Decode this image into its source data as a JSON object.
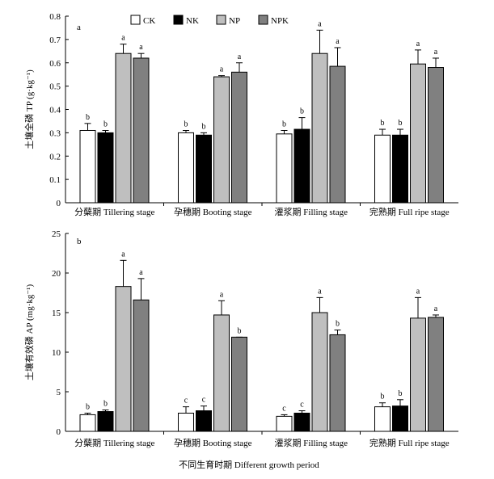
{
  "chart_data": [
    {
      "type": "bar",
      "panel_label": "a",
      "ylabel": "土壤全磷 TP (g·kg⁻¹)",
      "ylim": [
        0,
        0.8
      ],
      "yticks": [
        "0",
        "0.1",
        "0.2",
        "0.3",
        "0.4",
        "0.5",
        "0.6",
        "0.7",
        "0.8"
      ],
      "categories": [
        "分蘖期 Tillering stage",
        "孕穗期 Booting stage",
        "灌浆期 Filling stage",
        "完熟期 Full ripe stage"
      ],
      "legend_placement": "top-center",
      "series": [
        {
          "name": "CK",
          "values": [
            0.31,
            0.3,
            0.295,
            0.29
          ],
          "errors": [
            0.03,
            0.01,
            0.015,
            0.025
          ],
          "letters": [
            "b",
            "b",
            "b",
            "b"
          ]
        },
        {
          "name": "NK",
          "values": [
            0.3,
            0.29,
            0.315,
            0.29
          ],
          "errors": [
            0.01,
            0.01,
            0.05,
            0.025
          ],
          "letters": [
            "b",
            "b",
            "b",
            "b"
          ]
        },
        {
          "name": "NP",
          "values": [
            0.64,
            0.54,
            0.64,
            0.595
          ],
          "errors": [
            0.04,
            0.005,
            0.1,
            0.06
          ],
          "letters": [
            "a",
            "a",
            "a",
            "a"
          ]
        },
        {
          "name": "NPK",
          "values": [
            0.62,
            0.56,
            0.585,
            0.58
          ],
          "errors": [
            0.02,
            0.04,
            0.08,
            0.04
          ],
          "letters": [
            "a",
            "a",
            "a",
            "a"
          ]
        }
      ]
    },
    {
      "type": "bar",
      "panel_label": "b",
      "ylabel": "土壤有效磷 AP (mg·kg⁻¹)",
      "xlabel": "不同生育时期 Different growth period",
      "ylim": [
        0,
        25
      ],
      "yticks": [
        "0",
        "5",
        "10",
        "15",
        "20",
        "25"
      ],
      "categories": [
        "分蘖期 Tillering stage",
        "孕穗期 Booting stage",
        "灌浆期 Filling stage",
        "完熟期 Full ripe stage"
      ],
      "series": [
        {
          "name": "CK",
          "values": [
            2.1,
            2.3,
            1.9,
            3.1
          ],
          "errors": [
            0.2,
            0.8,
            0.2,
            0.5
          ],
          "letters": [
            "b",
            "c",
            "c",
            "b"
          ]
        },
        {
          "name": "NK",
          "values": [
            2.5,
            2.6,
            2.3,
            3.2
          ],
          "errors": [
            0.2,
            0.6,
            0.3,
            0.8
          ],
          "letters": [
            "b",
            "c",
            "c",
            "b"
          ]
        },
        {
          "name": "NP",
          "values": [
            18.3,
            14.7,
            15.0,
            14.3
          ],
          "errors": [
            3.3,
            1.8,
            1.9,
            2.6
          ],
          "letters": [
            "a",
            "a",
            "a",
            "a"
          ]
        },
        {
          "name": "NPK",
          "values": [
            16.6,
            11.9,
            12.2,
            14.4
          ],
          "errors": [
            2.7,
            0.0,
            0.6,
            0.3
          ],
          "letters": [
            "a",
            "b",
            "b",
            "a"
          ]
        }
      ]
    }
  ],
  "colors": {
    "CK": "#ffffff",
    "NK": "#000000",
    "NP": "#bfbfbf",
    "NPK": "#808080",
    "stroke": "#000000"
  }
}
